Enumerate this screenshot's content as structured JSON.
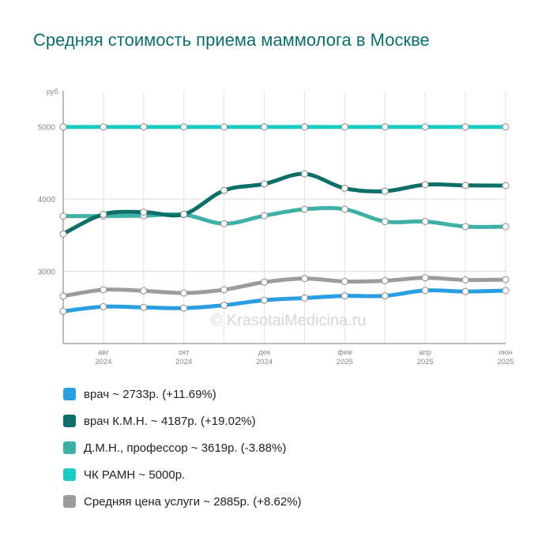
{
  "title": "Средняя стоимость приема маммолога в Москве",
  "watermark": "© KrasotaiMedicina.ru",
  "chart_data": {
    "type": "line",
    "y_unit": "руб.",
    "ylim": [
      2000,
      5500
    ],
    "y_ticks": [
      "3000",
      "4000",
      "5000"
    ],
    "x_tick_labels": [
      {
        "month": "авг",
        "year": "2024"
      },
      {
        "month": "окт",
        "year": "2024"
      },
      {
        "month": "дек",
        "year": "2024"
      },
      {
        "month": "фев",
        "year": "2025"
      },
      {
        "month": "апр",
        "year": "2025"
      },
      {
        "month": "июн",
        "year": "2025"
      }
    ],
    "x": [
      "2024-07",
      "2024-08",
      "2024-09",
      "2024-10",
      "2024-11",
      "2024-12",
      "2025-01",
      "2025-02",
      "2025-03",
      "2025-04",
      "2025-05",
      "2025-06"
    ],
    "grid": true,
    "legend_position": "bottom",
    "series": [
      {
        "name": "врач",
        "legend": "врач ~ 2733р. (+11.69%)",
        "color": "#2a9ee3",
        "values": [
          2447,
          2510,
          2500,
          2490,
          2530,
          2600,
          2630,
          2660,
          2660,
          2735,
          2720,
          2733
        ]
      },
      {
        "name": "врач К.М.Н.",
        "legend": "врач К.М.Н. ~ 4187р. (+19.02%)",
        "color": "#0e6e68",
        "values": [
          3518,
          3790,
          3820,
          3790,
          4120,
          4210,
          4350,
          4150,
          4110,
          4200,
          4190,
          4187
        ]
      },
      {
        "name": "Д.М.Н., профессор",
        "legend": "Д.М.Н., профессор ~ 3619р. (-3.88%)",
        "color": "#3fb0a6",
        "values": [
          3765,
          3765,
          3770,
          3785,
          3660,
          3770,
          3860,
          3860,
          3690,
          3690,
          3620,
          3619
        ]
      },
      {
        "name": "ЧК РАМН",
        "legend": "ЧК РАМН ~ 5000р.",
        "color": "#1ccbc4",
        "values": [
          5000,
          5000,
          5000,
          5000,
          5000,
          5000,
          5000,
          5000,
          5000,
          5000,
          5000,
          5000
        ]
      },
      {
        "name": "Средняя цена услуги",
        "legend": "Средняя цена услуги ~ 2885р. (+8.62%)",
        "color": "#9c9c9c",
        "values": [
          2656,
          2745,
          2730,
          2700,
          2745,
          2850,
          2900,
          2860,
          2870,
          2910,
          2880,
          2885
        ]
      }
    ]
  }
}
